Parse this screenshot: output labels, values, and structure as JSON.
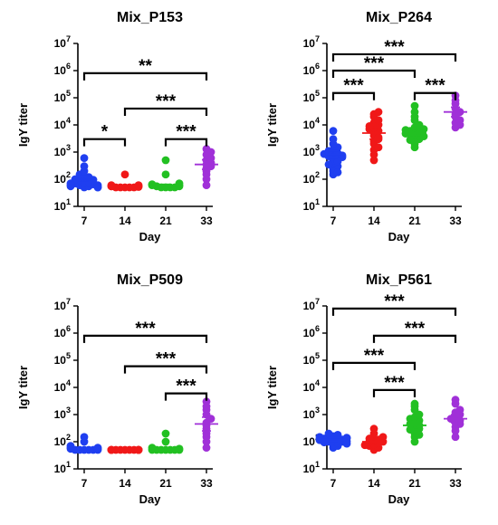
{
  "chart_data": [
    {
      "type": "scatter",
      "title": "Mix_P153",
      "xlabel": "Day",
      "ylabel": "IgY titer",
      "yscale": "log",
      "ylim": [
        10,
        10000000
      ],
      "yticks": [
        {
          "v": 10,
          "b": "10",
          "e": "1"
        },
        {
          "v": 100,
          "b": "10",
          "e": "2"
        },
        {
          "v": 1000,
          "b": "10",
          "e": "3"
        },
        {
          "v": 10000,
          "b": "10",
          "e": "4"
        },
        {
          "v": 100000,
          "b": "10",
          "e": "5"
        },
        {
          "v": 1000000,
          "b": "10",
          "e": "6"
        },
        {
          "v": 10000000,
          "b": "10",
          "e": "7"
        }
      ],
      "categories": [
        "7",
        "14",
        "21",
        "33"
      ],
      "series": [
        {
          "color": "#1f3ff0",
          "mean": 100,
          "sem": [
            75,
            130
          ],
          "values": [
            50,
            55,
            60,
            65,
            70,
            75,
            80,
            90,
            95,
            100,
            110,
            120,
            150,
            200,
            300,
            600,
            50,
            55,
            60,
            70,
            50,
            62
          ]
        },
        {
          "color": "#f01818",
          "mean": 55,
          "sem": [
            52,
            58
          ],
          "values": [
            50,
            50,
            50,
            50,
            50,
            52,
            55,
            55,
            55,
            60,
            60,
            150
          ]
        },
        {
          "color": "#22c022",
          "mean": 60,
          "sem": [
            55,
            65
          ],
          "values": [
            50,
            50,
            50,
            50,
            55,
            55,
            60,
            60,
            65,
            70,
            150,
            500
          ]
        },
        {
          "color": "#a030d8",
          "mean": 350,
          "sem": [
            230,
            520
          ],
          "values": [
            60,
            100,
            150,
            200,
            250,
            300,
            350,
            400,
            500,
            600,
            800,
            1000,
            1300
          ]
        }
      ],
      "significance": [
        {
          "from": 0,
          "to": 3,
          "y": 800000,
          "label": "**"
        },
        {
          "from": 1,
          "to": 3,
          "y": 40000,
          "label": "***"
        },
        {
          "from": 0,
          "to": 1,
          "y": 3000,
          "label": "*"
        },
        {
          "from": 2,
          "to": 3,
          "y": 3000,
          "label": "***"
        }
      ]
    },
    {
      "type": "scatter",
      "title": "Mix_P264",
      "xlabel": "Day",
      "ylabel": "IgY titer",
      "yscale": "log",
      "ylim": [
        10,
        10000000
      ],
      "yticks": [
        {
          "v": 10,
          "b": "10",
          "e": "1"
        },
        {
          "v": 100,
          "b": "10",
          "e": "2"
        },
        {
          "v": 1000,
          "b": "10",
          "e": "3"
        },
        {
          "v": 10000,
          "b": "10",
          "e": "4"
        },
        {
          "v": 100000,
          "b": "10",
          "e": "5"
        },
        {
          "v": 1000000,
          "b": "10",
          "e": "6"
        },
        {
          "v": 10000000,
          "b": "10",
          "e": "7"
        }
      ],
      "categories": [
        "7",
        "14",
        "21",
        "33"
      ],
      "series": [
        {
          "color": "#1f3ff0",
          "mean": 800,
          "sem": [
            600,
            1100
          ],
          "values": [
            150,
            200,
            250,
            300,
            400,
            500,
            600,
            700,
            800,
            900,
            1000,
            1200,
            1500,
            2000,
            3000,
            6000,
            450,
            650,
            750,
            1100,
            180,
            350,
            850
          ]
        },
        {
          "color": "#f01818",
          "mean": 5000,
          "sem": [
            3000,
            8000
          ],
          "values": [
            500,
            800,
            1200,
            2000,
            2500,
            3000,
            4000,
            5000,
            6000,
            7000,
            8000,
            10000,
            12000,
            15000,
            20000,
            25000,
            30000,
            1500,
            3500,
            9000
          ]
        },
        {
          "color": "#22c022",
          "mean": 5000,
          "sem": [
            3500,
            7000
          ],
          "values": [
            1500,
            2000,
            2500,
            3000,
            3500,
            4000,
            4500,
            5000,
            5500,
            6000,
            7000,
            8000,
            10000,
            15000,
            20000,
            30000,
            50000,
            2800,
            3800,
            4800,
            6500
          ]
        },
        {
          "color": "#a030d8",
          "mean": 30000,
          "sem": [
            20000,
            45000
          ],
          "values": [
            8000,
            10000,
            12000,
            15000,
            20000,
            25000,
            30000,
            40000,
            60000,
            80000,
            120000
          ]
        }
      ],
      "significance": [
        {
          "from": 0,
          "to": 3,
          "y": 4000000,
          "label": "***"
        },
        {
          "from": 0,
          "to": 2,
          "y": 1000000,
          "label": "***"
        },
        {
          "from": 0,
          "to": 1,
          "y": 150000,
          "label": "***"
        },
        {
          "from": 2,
          "to": 3,
          "y": 150000,
          "label": "***"
        }
      ]
    },
    {
      "type": "scatter",
      "title": "Mix_P509",
      "xlabel": "Day",
      "ylabel": "IgY titer",
      "yscale": "log",
      "ylim": [
        10,
        10000000
      ],
      "yticks": [
        {
          "v": 10,
          "b": "10",
          "e": "1"
        },
        {
          "v": 100,
          "b": "10",
          "e": "2"
        },
        {
          "v": 1000,
          "b": "10",
          "e": "3"
        },
        {
          "v": 10000,
          "b": "10",
          "e": "4"
        },
        {
          "v": 100000,
          "b": "10",
          "e": "5"
        },
        {
          "v": 1000000,
          "b": "10",
          "e": "6"
        },
        {
          "v": 10000000,
          "b": "10",
          "e": "7"
        }
      ],
      "categories": [
        "7",
        "14",
        "21",
        "33"
      ],
      "series": [
        {
          "color": "#1f3ff0",
          "mean": 55,
          "sem": [
            52,
            58
          ],
          "values": [
            50,
            50,
            50,
            50,
            50,
            50,
            55,
            55,
            60,
            60,
            70,
            100,
            150
          ]
        },
        {
          "color": "#f01818",
          "mean": 50,
          "sem": [
            50,
            50
          ],
          "values": [
            50,
            50,
            50,
            50,
            50,
            50,
            50,
            50,
            50,
            50,
            50,
            50,
            50,
            50
          ]
        },
        {
          "color": "#22c022",
          "mean": 55,
          "sem": [
            52,
            60
          ],
          "values": [
            50,
            50,
            50,
            50,
            50,
            50,
            50,
            55,
            60,
            100,
            200
          ]
        },
        {
          "color": "#a030d8",
          "mean": 450,
          "sem": [
            250,
            800
          ],
          "values": [
            60,
            100,
            150,
            200,
            300,
            400,
            500,
            700,
            1000,
            1500,
            2000,
            3000
          ]
        }
      ],
      "significance": [
        {
          "from": 0,
          "to": 3,
          "y": 800000,
          "label": "***"
        },
        {
          "from": 1,
          "to": 3,
          "y": 60000,
          "label": "***"
        },
        {
          "from": 2,
          "to": 3,
          "y": 6000,
          "label": "***"
        }
      ]
    },
    {
      "type": "scatter",
      "title": "Mix_P561",
      "xlabel": "Day",
      "ylabel": "IgY titer",
      "yscale": "log",
      "ylim": [
        10,
        10000000
      ],
      "yticks": [
        {
          "v": 10,
          "b": "10",
          "e": "1"
        },
        {
          "v": 100,
          "b": "10",
          "e": "2"
        },
        {
          "v": 1000,
          "b": "10",
          "e": "3"
        },
        {
          "v": 10000,
          "b": "10",
          "e": "4"
        },
        {
          "v": 100000,
          "b": "10",
          "e": "5"
        },
        {
          "v": 1000000,
          "b": "10",
          "e": "6"
        },
        {
          "v": 10000000,
          "b": "10",
          "e": "7"
        }
      ],
      "categories": [
        "7",
        "14",
        "21",
        "33"
      ],
      "series": [
        {
          "color": "#1f3ff0",
          "mean": 120,
          "sem": [
            105,
            140
          ],
          "values": [
            60,
            70,
            80,
            90,
            100,
            100,
            110,
            110,
            120,
            120,
            130,
            140,
            150,
            160,
            180,
            200,
            95,
            105,
            125,
            135,
            85,
            115
          ]
        },
        {
          "color": "#f01818",
          "mean": 100,
          "sem": [
            85,
            120
          ],
          "values": [
            50,
            60,
            70,
            80,
            90,
            100,
            100,
            110,
            120,
            130,
            150,
            200,
            300,
            75
          ]
        },
        {
          "color": "#22c022",
          "mean": 400,
          "sem": [
            280,
            550
          ],
          "values": [
            100,
            150,
            200,
            250,
            300,
            350,
            400,
            500,
            600,
            700,
            800,
            1000,
            1500,
            2000,
            2500,
            180,
            450,
            280
          ]
        },
        {
          "color": "#a030d8",
          "mean": 700,
          "sem": [
            500,
            1000
          ],
          "values": [
            150,
            250,
            350,
            450,
            500,
            600,
            700,
            800,
            1000,
            1200,
            1500,
            2500,
            3500
          ]
        }
      ],
      "significance": [
        {
          "from": 0,
          "to": 3,
          "y": 8000000,
          "label": "***"
        },
        {
          "from": 1,
          "to": 3,
          "y": 800000,
          "label": "***"
        },
        {
          "from": 0,
          "to": 2,
          "y": 80000,
          "label": "***"
        },
        {
          "from": 1,
          "to": 2,
          "y": 8000,
          "label": "***"
        }
      ]
    }
  ]
}
